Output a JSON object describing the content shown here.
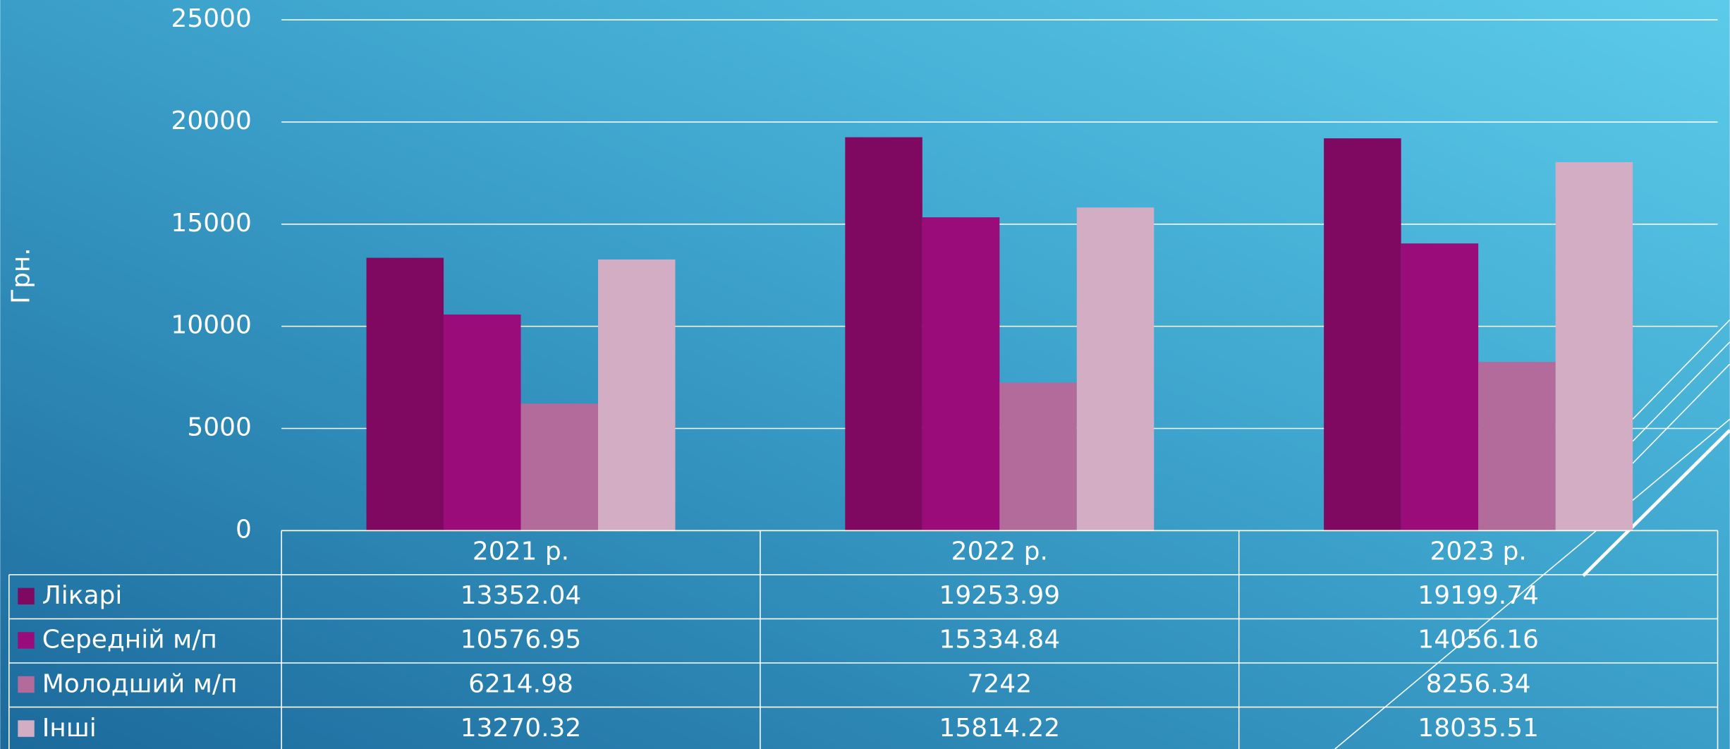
{
  "chart_data": {
    "type": "bar",
    "y_axis_label": "Грн.",
    "categories": [
      "2021 р.",
      "2022 р.",
      "2023 р."
    ],
    "series": [
      {
        "name": "Лікарі",
        "color": "#7f0860",
        "values": [
          13352.04,
          19253.99,
          19199.74
        ]
      },
      {
        "name": "Середній м/п",
        "color": "#9b0c7b",
        "values": [
          10576.95,
          15334.84,
          14056.16
        ]
      },
      {
        "name": "Молодший м/п",
        "color": "#b36b9b",
        "values": [
          6214.98,
          7242,
          8256.34
        ]
      },
      {
        "name": "Інші",
        "color": "#d3adc4",
        "values": [
          13270.32,
          15814.22,
          18035.51
        ]
      }
    ],
    "ylim": [
      0,
      25000
    ],
    "yticks": [
      0,
      5000,
      10000,
      15000,
      20000,
      25000
    ],
    "grid": true
  }
}
